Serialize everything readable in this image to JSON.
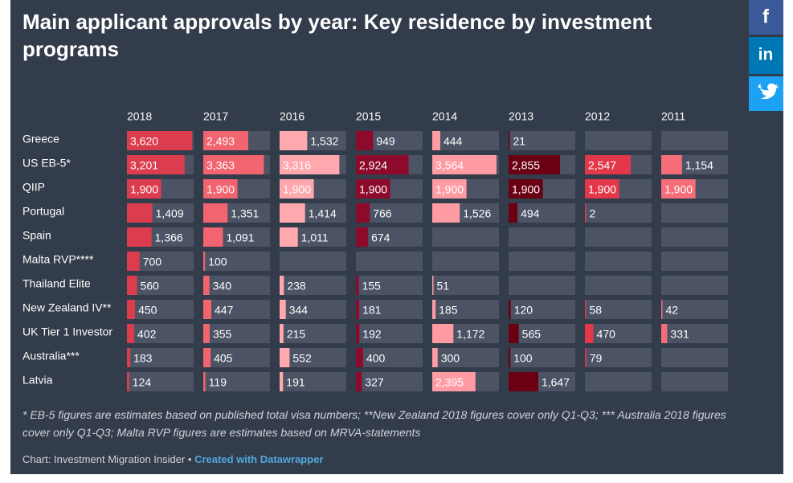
{
  "chart_data": {
    "type": "bar-table",
    "title": "Main applicant approvals by year: Key residence by investment programs",
    "categories": [
      "Greece",
      "US EB-5*",
      "QIIP",
      "Portugal",
      "Spain",
      "Malta RVP****",
      "Thailand Elite",
      "New Zealand IV**",
      "UK Tier 1 Investor",
      "Australia***",
      "Latvia"
    ],
    "xlim": [
      0,
      3700
    ],
    "series": [
      {
        "name": "2018",
        "color": "#dc3d4e",
        "values": [
          3620,
          3201,
          1900,
          1409,
          1366,
          700,
          560,
          450,
          402,
          183,
          124
        ],
        "value_labels": [
          "3,620",
          "3,201",
          "1,900",
          "1,409",
          "1,366",
          "700",
          "560",
          "450",
          "402",
          "183",
          "124"
        ]
      },
      {
        "name": "2017",
        "color": "#f2646f",
        "values": [
          2493,
          3363,
          1900,
          1351,
          1091,
          100,
          340,
          447,
          355,
          405,
          119
        ],
        "value_labels": [
          "2,493",
          "3,363",
          "1,900",
          "1,351",
          "1,091",
          "100",
          "340",
          "447",
          "355",
          "405",
          "119"
        ]
      },
      {
        "name": "2016",
        "color": "#ffa9ae",
        "values": [
          1532,
          3316,
          1900,
          1414,
          1011,
          null,
          238,
          344,
          215,
          552,
          191
        ],
        "value_labels": [
          "1,532",
          "3,316",
          "1,900",
          "1,414",
          "1,011",
          null,
          "238",
          "344",
          "215",
          "552",
          "191"
        ]
      },
      {
        "name": "2015",
        "color": "#8e0a2c",
        "values": [
          949,
          2924,
          1900,
          766,
          674,
          null,
          155,
          181,
          192,
          400,
          327
        ],
        "value_labels": [
          "949",
          "2,924",
          "1,900",
          "766",
          "674",
          null,
          "155",
          "181",
          "192",
          "400",
          "327"
        ]
      },
      {
        "name": "2014",
        "color": "#ff9ca3",
        "values": [
          444,
          3564,
          1900,
          1526,
          null,
          null,
          51,
          185,
          1172,
          300,
          2395
        ],
        "value_labels": [
          "444",
          "3,564",
          "1,900",
          "1,526",
          null,
          null,
          "51",
          "185",
          "1,172",
          "300",
          "2,395"
        ]
      },
      {
        "name": "2013",
        "color": "#6a0012",
        "values": [
          21,
          2855,
          1900,
          494,
          null,
          null,
          null,
          120,
          565,
          100,
          1647
        ],
        "value_labels": [
          "21",
          "2,855",
          "1,900",
          "494",
          null,
          null,
          null,
          "120",
          "565",
          "100",
          "1,647"
        ]
      },
      {
        "name": "2012",
        "color": "#e3384a",
        "values": [
          null,
          2547,
          1900,
          2,
          null,
          null,
          null,
          58,
          470,
          79,
          null
        ],
        "value_labels": [
          null,
          "2,547",
          "1,900",
          "2",
          null,
          null,
          null,
          "58",
          "470",
          "79",
          null
        ]
      },
      {
        "name": "2011",
        "color": "#f56d78",
        "values": [
          null,
          1154,
          1900,
          null,
          null,
          null,
          null,
          42,
          331,
          null,
          null
        ],
        "value_labels": [
          null,
          "1,154",
          "1,900",
          null,
          null,
          null,
          null,
          "42",
          "331",
          null,
          null
        ]
      }
    ],
    "footnote": "* EB-5 figures are estimates based on published total visa numbers; **New Zealand 2018 figures cover only Q1-Q3; *** Australia 2018 figures cover only Q1-Q3; Malta RVP figures are estimates based on MRVA-statements",
    "byline": "Chart: Investment Migration Insider •",
    "credit_link": "Created with Datawrapper"
  },
  "share": {
    "facebook": "f",
    "linkedin": "in"
  }
}
